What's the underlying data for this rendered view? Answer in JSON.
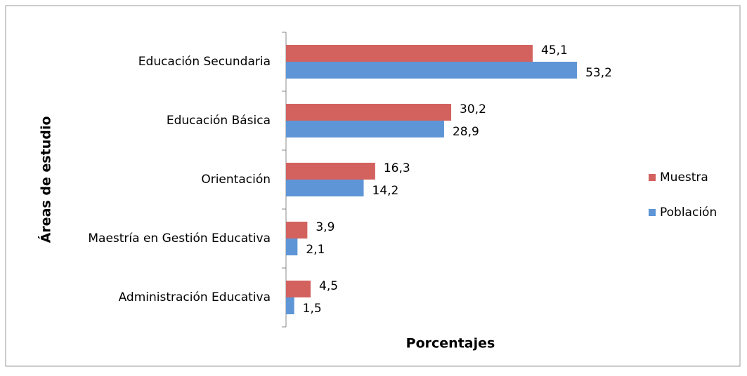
{
  "chart_data": {
    "type": "barh",
    "xlabel": "Porcentajes",
    "ylabel": "Áreas de estudio",
    "categories": [
      "Educación Secundaria",
      "Educación Básica",
      "Orientación",
      "Maestría en Gestión Educativa",
      "Administración Educativa"
    ],
    "series": [
      {
        "name": "Muestra",
        "color": "#d3625f",
        "values": [
          45.1,
          30.2,
          16.3,
          3.9,
          4.5
        ],
        "value_labels": [
          "45,1",
          "30,2",
          "16,3",
          "3,9",
          "4,5"
        ]
      },
      {
        "name": "Población",
        "color": "#5e95d6",
        "values": [
          53.2,
          28.9,
          14.2,
          2.1,
          1.5
        ],
        "value_labels": [
          "53,2",
          "28,9",
          "14,2",
          "2,1",
          "1,5"
        ]
      }
    ],
    "xlim": [
      0,
      60
    ],
    "legend": "right"
  }
}
